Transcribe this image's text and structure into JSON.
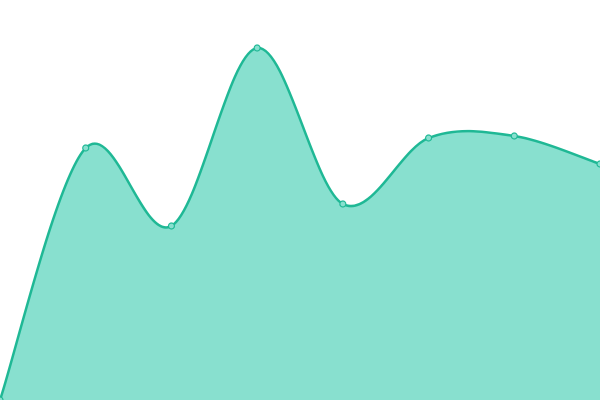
{
  "chart_data": {
    "type": "area",
    "categories": [
      null,
      null,
      null,
      null,
      null,
      null,
      null,
      null
    ],
    "values": [
      0,
      63,
      43.5,
      88,
      49,
      65.5,
      66,
      59
    ],
    "color": "#1fb895",
    "fill": "#88e0cf",
    "ylim": [
      0,
      100
    ]
  }
}
